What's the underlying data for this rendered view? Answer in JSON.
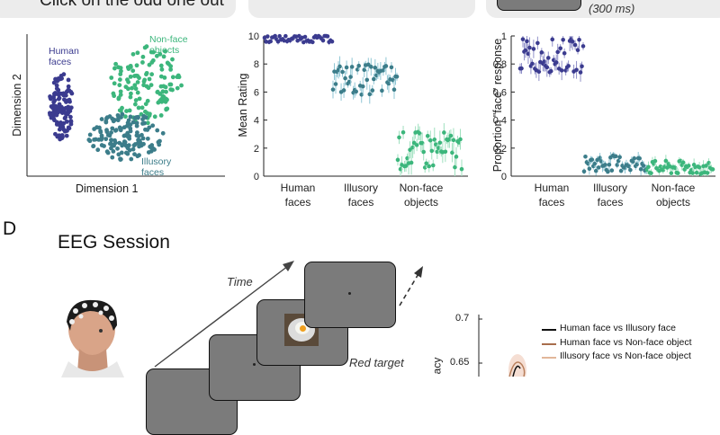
{
  "top_bar": {
    "left_text": "Click on the odd one out",
    "right_text": "(300 ms)"
  },
  "colors": {
    "human": "#3b3b8f",
    "illusory": "#3c7d8a",
    "nonface": "#3cb67c",
    "human_light": "#9090c8",
    "illusory_light": "#8fc6d4",
    "nonface_light": "#9fe0bf"
  },
  "panel_mds": {
    "xlabel": "Dimension 1",
    "ylabel": "Dimension 2",
    "group_labels": {
      "human": "Human faces",
      "nonface": "Non-face objects",
      "illusory": "Illusory faces"
    }
  },
  "chart_data": [
    {
      "type": "scatter",
      "ylabel": "Mean Rating",
      "ylim": [
        0,
        10
      ],
      "yticks": [
        "0",
        "2",
        "4",
        "6",
        "8",
        "10"
      ],
      "categories": [
        "Human faces",
        "Illusory faces",
        "Non-face objects"
      ],
      "series": [
        {
          "name": "Human faces",
          "mean_approx": 9.8,
          "range": [
            9.0,
            10.0
          ]
        },
        {
          "name": "Illusory faces",
          "mean_approx": 6.9,
          "range": [
            4.5,
            8.4
          ]
        },
        {
          "name": "Non-face objects",
          "mean_approx": 1.8,
          "range": [
            0.5,
            4.8
          ]
        }
      ]
    },
    {
      "type": "scatter",
      "ylabel": "Proportion \"face\" response",
      "ylim": [
        0,
        1
      ],
      "yticks": [
        "0",
        "0.2",
        "0.4",
        "0.6",
        "0.8",
        "1"
      ],
      "categories": [
        "Human faces",
        "Illusory faces",
        "Non-face objects"
      ],
      "series": [
        {
          "name": "Human faces",
          "mean_approx": 0.86,
          "range": [
            0.63,
            0.98
          ]
        },
        {
          "name": "Illusory faces",
          "mean_approx": 0.09,
          "range": [
            0.02,
            0.17
          ]
        },
        {
          "name": "Non-face objects",
          "mean_approx": 0.06,
          "range": [
            0.01,
            0.12
          ]
        }
      ]
    },
    {
      "type": "line",
      "ylabel": "acy",
      "yticks": [
        "0.7",
        "0.65"
      ],
      "legend": [
        "Human face vs Illusory face",
        "Human face vs Non-face object",
        "Illusory face vs Non-face object"
      ]
    }
  ],
  "section_d": {
    "letter": "D",
    "title": "EEG Session",
    "time_label": "Time",
    "target_label": "Red target"
  }
}
